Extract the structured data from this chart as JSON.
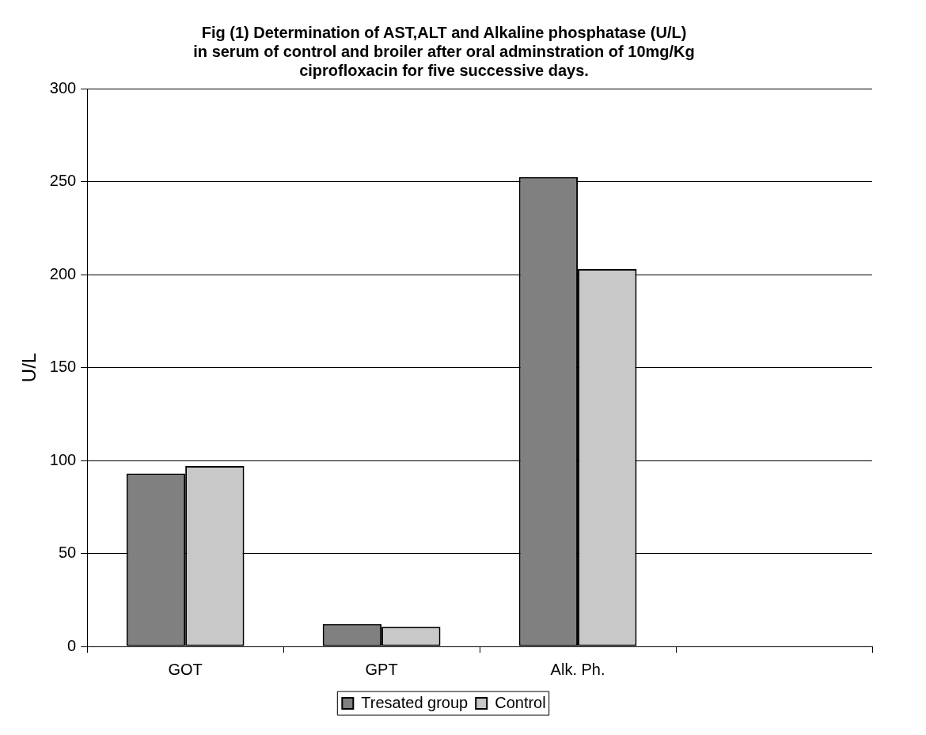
{
  "chart_data": {
    "type": "bar",
    "title": [
      "Fig (1) Determination of AST,ALT and Alkaline phosphatase (U/L)",
      "in serum of control and broiler after oral adminstration of 10mg/Kg",
      "ciprofloxacin for five successive days."
    ],
    "ylabel": "U/L",
    "categories": [
      "GOT",
      "GPT",
      "Alk. Ph.",
      null
    ],
    "series": [
      {
        "name": "Tresated group",
        "color": "#808080",
        "values": [
          93,
          12,
          252.5,
          null
        ]
      },
      {
        "name": "Control",
        "color": "#c8c8c8",
        "values": [
          97,
          10.5,
          203,
          null
        ]
      }
    ],
    "ylim": [
      0,
      300
    ],
    "yticks": [
      0,
      50,
      100,
      150,
      200,
      250,
      300
    ],
    "grid": "y",
    "legend": "bottom"
  }
}
